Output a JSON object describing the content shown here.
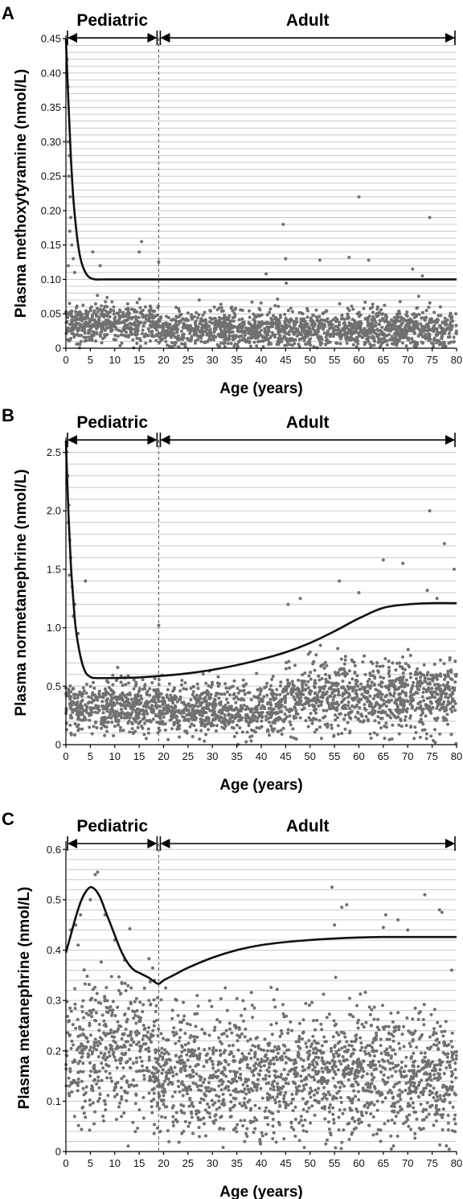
{
  "chart_data": [
    {
      "type": "scatter",
      "panel": "A",
      "xlabel": "Age (years)",
      "ylabel": "Plasma methoxytyramine (nmol/L)",
      "xlim": [
        0,
        80
      ],
      "ylim": [
        0,
        0.45
      ],
      "x_ticks": [
        0,
        5,
        10,
        15,
        20,
        25,
        30,
        35,
        40,
        45,
        50,
        55,
        60,
        65,
        70,
        75,
        80
      ],
      "y_ticks": [
        0,
        0.05,
        0.1,
        0.15,
        0.2,
        0.25,
        0.3,
        0.35,
        0.4,
        0.45
      ],
      "y_tick_labels": [
        "0",
        "0.05",
        "0.10",
        "0.15",
        "0.20",
        "0.25",
        "0.30",
        "0.35",
        "0.40",
        "0.45"
      ],
      "grid": true,
      "regions": [
        {
          "label": "Pediatric",
          "from": 0,
          "to": 19
        },
        {
          "label": "Adult",
          "from": 19,
          "to": 80
        }
      ],
      "divider_x": 19,
      "reference_curve": {
        "x": [
          0,
          0.5,
          1,
          1.5,
          2,
          2.5,
          3,
          3.5,
          4,
          4.5,
          5,
          6,
          8,
          10,
          20,
          40,
          60,
          80
        ],
        "y": [
          0.45,
          0.36,
          0.28,
          0.22,
          0.18,
          0.15,
          0.13,
          0.118,
          0.11,
          0.105,
          0.102,
          0.1,
          0.1,
          0.1,
          0.1,
          0.1,
          0.1,
          0.1
        ]
      },
      "scatter_cloud": [
        {
          "x_from": 0,
          "x_to": 19,
          "y_center": 0.035,
          "y_spread": 0.02,
          "n": 480
        },
        {
          "x_from": 19,
          "x_to": 80,
          "y_center": 0.028,
          "y_spread": 0.02,
          "n": 1500
        }
      ],
      "outliers": [
        {
          "x": 0.2,
          "y": 0.42
        },
        {
          "x": 0.4,
          "y": 0.38
        },
        {
          "x": 0.5,
          "y": 0.3
        },
        {
          "x": 0.7,
          "y": 0.28
        },
        {
          "x": 0.6,
          "y": 0.25
        },
        {
          "x": 0.9,
          "y": 0.22
        },
        {
          "x": 1.0,
          "y": 0.19
        },
        {
          "x": 0.8,
          "y": 0.17
        },
        {
          "x": 1.2,
          "y": 0.15
        },
        {
          "x": 1.5,
          "y": 0.13
        },
        {
          "x": 0.5,
          "y": 0.12
        },
        {
          "x": 1.8,
          "y": 0.11
        },
        {
          "x": 5.5,
          "y": 0.14
        },
        {
          "x": 7.0,
          "y": 0.12
        },
        {
          "x": 15.5,
          "y": 0.155
        },
        {
          "x": 15.0,
          "y": 0.14
        },
        {
          "x": 19.0,
          "y": 0.125
        },
        {
          "x": 44.5,
          "y": 0.18
        },
        {
          "x": 60.0,
          "y": 0.22
        },
        {
          "x": 74.5,
          "y": 0.19
        },
        {
          "x": 45.0,
          "y": 0.13
        },
        {
          "x": 52.0,
          "y": 0.128
        },
        {
          "x": 58.0,
          "y": 0.132
        },
        {
          "x": 62.0,
          "y": 0.128
        },
        {
          "x": 71.0,
          "y": 0.115
        },
        {
          "x": 73.0,
          "y": 0.105
        },
        {
          "x": 41.0,
          "y": 0.108
        }
      ]
    },
    {
      "type": "scatter",
      "panel": "B",
      "xlabel": "Age (years)",
      "ylabel": "Plasma normetanephrine (nmol/L)",
      "xlim": [
        0,
        80
      ],
      "ylim": [
        0,
        2.6
      ],
      "x_ticks": [
        0,
        5,
        10,
        15,
        20,
        25,
        30,
        35,
        40,
        45,
        50,
        55,
        60,
        65,
        70,
        75,
        80
      ],
      "y_ticks": [
        0,
        0.5,
        1.0,
        1.5,
        2.0,
        2.5
      ],
      "y_tick_labels": [
        "0",
        "0.5",
        "1.0",
        "1.5",
        "2.0",
        "2.5"
      ],
      "grid": true,
      "regions": [
        {
          "label": "Pediatric",
          "from": 0,
          "to": 19
        },
        {
          "label": "Adult",
          "from": 19,
          "to": 80
        }
      ],
      "divider_x": 19,
      "reference_curve": {
        "x": [
          0,
          0.5,
          1,
          1.5,
          2,
          3,
          4,
          5,
          6,
          10,
          15,
          20,
          25,
          30,
          35,
          40,
          45,
          50,
          55,
          60,
          65,
          70,
          75,
          80
        ],
        "y": [
          2.6,
          2.0,
          1.55,
          1.25,
          1.0,
          0.75,
          0.62,
          0.58,
          0.57,
          0.57,
          0.575,
          0.59,
          0.61,
          0.64,
          0.68,
          0.73,
          0.79,
          0.87,
          0.97,
          1.08,
          1.17,
          1.2,
          1.21,
          1.21
        ]
      },
      "scatter_cloud": [
        {
          "x_from": 0,
          "x_to": 19,
          "y_center": 0.32,
          "y_spread": 0.16,
          "n": 480
        },
        {
          "x_from": 19,
          "x_to": 45,
          "y_center": 0.3,
          "y_spread": 0.16,
          "n": 650
        },
        {
          "x_from": 45,
          "x_to": 80,
          "y_center": 0.42,
          "y_spread": 0.22,
          "n": 900
        }
      ],
      "outliers": [
        {
          "x": 0.2,
          "y": 2.5
        },
        {
          "x": 0.4,
          "y": 2.3
        },
        {
          "x": 0.6,
          "y": 2.05
        },
        {
          "x": 0.5,
          "y": 1.9
        },
        {
          "x": 0.8,
          "y": 1.75
        },
        {
          "x": 1.0,
          "y": 1.6
        },
        {
          "x": 0.7,
          "y": 1.45
        },
        {
          "x": 1.3,
          "y": 1.35
        },
        {
          "x": 1.8,
          "y": 1.2
        },
        {
          "x": 1.5,
          "y": 1.1
        },
        {
          "x": 2.5,
          "y": 0.95
        },
        {
          "x": 4.0,
          "y": 1.4
        },
        {
          "x": 19.0,
          "y": 1.02
        },
        {
          "x": 45.5,
          "y": 1.2
        },
        {
          "x": 48.0,
          "y": 1.25
        },
        {
          "x": 56.0,
          "y": 1.4
        },
        {
          "x": 60.0,
          "y": 1.3
        },
        {
          "x": 65.0,
          "y": 1.58
        },
        {
          "x": 69.0,
          "y": 1.55
        },
        {
          "x": 74.0,
          "y": 1.32
        },
        {
          "x": 74.5,
          "y": 2.0
        },
        {
          "x": 77.5,
          "y": 1.72
        },
        {
          "x": 79.5,
          "y": 1.5
        },
        {
          "x": 76.0,
          "y": 1.25
        }
      ]
    },
    {
      "type": "scatter",
      "panel": "C",
      "xlabel": "Age (years)",
      "ylabel": "Plasma metanephrine (nmol/L)",
      "xlim": [
        0,
        80
      ],
      "ylim": [
        0,
        0.61
      ],
      "x_ticks": [
        0,
        5,
        10,
        15,
        20,
        25,
        30,
        35,
        40,
        45,
        50,
        55,
        60,
        65,
        70,
        75,
        80
      ],
      "y_ticks": [
        0,
        0.1,
        0.2,
        0.3,
        0.4,
        0.5,
        0.6
      ],
      "y_tick_labels": [
        "0",
        "0.1",
        "0.2",
        "0.3",
        "0.4",
        "0.5",
        "0.6"
      ],
      "grid": true,
      "regions": [
        {
          "label": "Pediatric",
          "from": 0,
          "to": 19
        },
        {
          "label": "Adult",
          "from": 19,
          "to": 80
        }
      ],
      "divider_x": 19,
      "reference_curve": {
        "x": [
          0,
          1,
          2,
          3,
          4,
          5,
          6,
          7,
          8,
          9,
          10,
          11,
          12,
          13,
          14,
          15,
          16,
          17,
          18,
          19,
          20,
          22,
          25,
          30,
          35,
          40,
          45,
          50,
          55,
          60,
          65,
          70,
          75,
          80
        ],
        "y": [
          0.395,
          0.43,
          0.465,
          0.495,
          0.515,
          0.525,
          0.52,
          0.505,
          0.48,
          0.455,
          0.43,
          0.405,
          0.385,
          0.37,
          0.36,
          0.355,
          0.35,
          0.345,
          0.338,
          0.333,
          0.34,
          0.35,
          0.365,
          0.385,
          0.4,
          0.41,
          0.416,
          0.42,
          0.423,
          0.425,
          0.426,
          0.426,
          0.426,
          0.426
        ]
      },
      "scatter_cloud": [
        {
          "x_from": 0,
          "x_to": 19,
          "y_center": 0.2,
          "y_spread": 0.1,
          "n": 480
        },
        {
          "x_from": 19,
          "x_to": 80,
          "y_center": 0.15,
          "y_spread": 0.09,
          "n": 1600
        }
      ],
      "outliers": [
        {
          "x": 6.5,
          "y": 0.555
        },
        {
          "x": 6.0,
          "y": 0.55
        },
        {
          "x": 5.0,
          "y": 0.5
        },
        {
          "x": 3.0,
          "y": 0.47
        },
        {
          "x": 2.0,
          "y": 0.45
        },
        {
          "x": 1.0,
          "y": 0.44
        },
        {
          "x": 8.0,
          "y": 0.47
        },
        {
          "x": 10.0,
          "y": 0.42
        },
        {
          "x": 12.0,
          "y": 0.38
        },
        {
          "x": 2.5,
          "y": 0.41
        },
        {
          "x": 54.5,
          "y": 0.525
        },
        {
          "x": 55.0,
          "y": 0.45
        },
        {
          "x": 56.5,
          "y": 0.485
        },
        {
          "x": 57.5,
          "y": 0.49
        },
        {
          "x": 65.5,
          "y": 0.47
        },
        {
          "x": 68.0,
          "y": 0.46
        },
        {
          "x": 73.5,
          "y": 0.51
        },
        {
          "x": 76.5,
          "y": 0.48
        },
        {
          "x": 77.0,
          "y": 0.475
        },
        {
          "x": 79.0,
          "y": 0.36
        },
        {
          "x": 65.0,
          "y": 0.445
        },
        {
          "x": 70.0,
          "y": 0.44
        }
      ]
    }
  ]
}
